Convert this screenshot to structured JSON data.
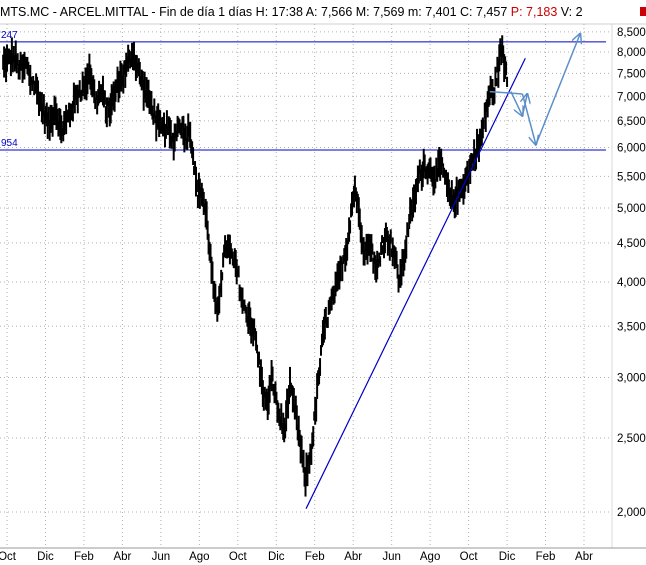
{
  "header": {
    "symbol": "MTS.MC",
    "name": "ARCEL.MITTAL",
    "period": "Fin de día 1 días",
    "fields": [
      {
        "label": "H:",
        "value": "17:38",
        "color": "#000000"
      },
      {
        "label": "A:",
        "value": "7,566",
        "color": "#000000"
      },
      {
        "label": "M:",
        "value": "7,569",
        "color": "#000000"
      },
      {
        "label": "m:",
        "value": "7,401",
        "color": "#000000"
      },
      {
        "label": "C:",
        "value": "7,457",
        "color": "#000000"
      },
      {
        "label": "P:",
        "value": "7,183",
        "color": "#cc0000"
      },
      {
        "label": "V:",
        "value": "2",
        "color": "#000000"
      }
    ]
  },
  "colors": {
    "price": "#000000",
    "levels": "#0000c8",
    "trendline": "#0000c8",
    "projection": "#5b8fc9",
    "grid": "#b0b0b0",
    "header_sep": "#d0d0d0",
    "overflow_marker": "#cc0000"
  },
  "chart_data": {
    "type": "ohlc",
    "title": "MTS.MC - ARCEL.MITTAL - Fin de día 1 días",
    "y_scale": "log",
    "ylim": [
      1.85,
      8.75
    ],
    "y_ticks": [
      {
        "value": 2.0,
        "label": "2,000"
      },
      {
        "value": 2.5,
        "label": "2,500"
      },
      {
        "value": 3.0,
        "label": "3,000"
      },
      {
        "value": 3.5,
        "label": "3,500"
      },
      {
        "value": 4.0,
        "label": "4,000"
      },
      {
        "value": 4.5,
        "label": "4,500"
      },
      {
        "value": 5.0,
        "label": "5,000"
      },
      {
        "value": 5.5,
        "label": "5,500"
      },
      {
        "value": 6.0,
        "label": "6,000"
      },
      {
        "value": 6.5,
        "label": "6,500"
      },
      {
        "value": 7.0,
        "label": "7,000"
      },
      {
        "value": 7.5,
        "label": "7,500"
      },
      {
        "value": 8.0,
        "label": "8,000"
      },
      {
        "value": 8.5,
        "label": "8,500"
      }
    ],
    "x_ticks": [
      {
        "month": 0,
        "label": "Oct"
      },
      {
        "month": 2,
        "label": "Dic"
      },
      {
        "month": 4,
        "label": "Feb"
      },
      {
        "month": 6,
        "label": "Abr"
      },
      {
        "month": 8,
        "label": "Jun"
      },
      {
        "month": 10,
        "label": "Ago"
      },
      {
        "month": 12,
        "label": "Oct"
      },
      {
        "month": 14,
        "label": "Dic"
      },
      {
        "month": 16,
        "label": "Feb"
      },
      {
        "month": 18,
        "label": "Abr"
      },
      {
        "month": 20,
        "label": "Jun"
      },
      {
        "month": 22,
        "label": "Ago"
      },
      {
        "month": 24,
        "label": "Oct"
      },
      {
        "month": 26,
        "label": "Dic"
      },
      {
        "month": 28,
        "label": "Feb"
      },
      {
        "month": 30,
        "label": "Abr"
      }
    ],
    "x_range_months": [
      0,
      32.6
    ],
    "horizontal_levels": [
      {
        "value": 8.247,
        "label": "247"
      },
      {
        "value": 5.954,
        "label": "954"
      }
    ],
    "price_path": [
      [
        -0.2,
        7.7
      ],
      [
        0.3,
        7.9
      ],
      [
        0.7,
        7.6
      ],
      [
        1.0,
        7.7
      ],
      [
        1.2,
        7.4
      ],
      [
        1.5,
        7.2
      ],
      [
        1.8,
        6.8
      ],
      [
        2.0,
        6.6
      ],
      [
        2.2,
        6.4
      ],
      [
        2.5,
        6.8
      ],
      [
        2.8,
        6.3
      ],
      [
        3.1,
        6.5
      ],
      [
        3.4,
        6.8
      ],
      [
        3.7,
        7.1
      ],
      [
        4.0,
        7.2
      ],
      [
        4.3,
        7.6
      ],
      [
        4.6,
        6.9
      ],
      [
        4.9,
        7.1
      ],
      [
        5.2,
        6.7
      ],
      [
        5.5,
        6.9
      ],
      [
        5.8,
        7.3
      ],
      [
        6.2,
        7.6
      ],
      [
        6.5,
        8.0
      ],
      [
        6.8,
        7.6
      ],
      [
        7.1,
        7.2
      ],
      [
        7.4,
        6.9
      ],
      [
        7.7,
        6.6
      ],
      [
        8.0,
        6.3
      ],
      [
        8.3,
        6.4
      ],
      [
        8.6,
        6.1
      ],
      [
        9.0,
        6.5
      ],
      [
        9.3,
        6.2
      ],
      [
        9.5,
        6.4
      ],
      [
        9.7,
        5.8
      ],
      [
        9.9,
        5.2
      ],
      [
        10.1,
        5.3
      ],
      [
        10.4,
        4.8
      ],
      [
        10.7,
        4.0
      ],
      [
        10.9,
        3.6
      ],
      [
        11.1,
        4.0
      ],
      [
        11.4,
        4.5
      ],
      [
        11.7,
        4.3
      ],
      [
        12.0,
        4.1
      ],
      [
        12.3,
        3.7
      ],
      [
        12.6,
        3.6
      ],
      [
        12.9,
        3.4
      ],
      [
        13.2,
        3.0
      ],
      [
        13.5,
        2.75
      ],
      [
        13.8,
        3.0
      ],
      [
        14.1,
        2.7
      ],
      [
        14.4,
        2.55
      ],
      [
        14.7,
        2.9
      ],
      [
        15.0,
        2.7
      ],
      [
        15.2,
        2.5
      ],
      [
        15.5,
        2.2
      ],
      [
        15.8,
        2.4
      ],
      [
        16.0,
        2.65
      ],
      [
        16.2,
        3.0
      ],
      [
        16.5,
        3.5
      ],
      [
        16.8,
        3.7
      ],
      [
        17.1,
        3.9
      ],
      [
        17.4,
        4.2
      ],
      [
        17.7,
        4.5
      ],
      [
        17.9,
        5.0
      ],
      [
        18.1,
        5.35
      ],
      [
        18.3,
        4.9
      ],
      [
        18.6,
        4.4
      ],
      [
        18.9,
        4.5
      ],
      [
        19.2,
        4.1
      ],
      [
        19.5,
        4.5
      ],
      [
        19.8,
        4.6
      ],
      [
        20.1,
        4.4
      ],
      [
        20.4,
        4.0
      ],
      [
        20.7,
        4.4
      ],
      [
        20.9,
        4.8
      ],
      [
        21.1,
        5.0
      ],
      [
        21.4,
        5.5
      ],
      [
        21.7,
        5.7
      ],
      [
        22.0,
        5.6
      ],
      [
        22.3,
        5.5
      ],
      [
        22.6,
        5.7
      ],
      [
        22.9,
        5.3
      ],
      [
        23.1,
        5.1
      ],
      [
        23.4,
        5.2
      ],
      [
        23.7,
        5.35
      ],
      [
        24.0,
        5.55
      ],
      [
        24.3,
        5.9
      ],
      [
        24.5,
        6.0
      ],
      [
        24.7,
        6.25
      ],
      [
        24.9,
        6.7
      ],
      [
        25.1,
        7.1
      ],
      [
        25.3,
        7.05
      ],
      [
        25.5,
        7.55
      ],
      [
        25.7,
        8.1
      ],
      [
        25.85,
        7.75
      ],
      [
        26.0,
        7.457
      ]
    ],
    "trendline": {
      "from": [
        15.55,
        2.02
      ],
      "to": [
        26.95,
        7.85
      ]
    },
    "projection": [
      [
        25.1,
        7.1
      ],
      [
        26.8,
        7.05
      ],
      [
        27.5,
        6.05
      ],
      [
        29.8,
        8.45
      ]
    ],
    "projection_short_leg": [
      [
        26.2,
        7.1
      ],
      [
        26.8,
        6.6
      ],
      [
        27.05,
        7.05
      ]
    ]
  }
}
